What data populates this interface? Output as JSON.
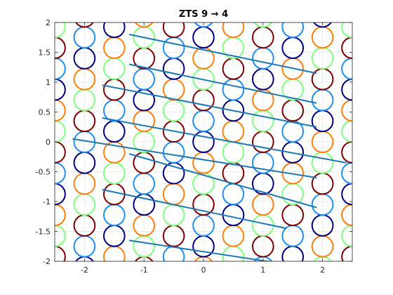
{
  "chart_data": {
    "type": "scatter",
    "title": "ZTS 9 → 4",
    "xlabel": "",
    "ylabel": "",
    "xlim": [
      -2.5,
      2.5
    ],
    "ylim": [
      -2,
      2
    ],
    "xticks": [
      -2,
      -1,
      0,
      1,
      2
    ],
    "yticks": [
      -2,
      -1.5,
      -1,
      -0.5,
      0,
      0.5,
      1,
      1.5,
      2
    ],
    "xtick_labels": [
      "-2",
      "-1",
      "0",
      "1",
      "2"
    ],
    "ytick_labels": [
      "-2",
      "-1.5",
      "-1",
      "-0.5",
      "0",
      "0.5",
      "1",
      "1.5",
      "2"
    ],
    "grid": true,
    "lattice": {
      "row_spacing": 0.35,
      "diagonal_slope": -0.35,
      "column_step": 0.5,
      "circle_radius_data_x": 0.175
    },
    "circle_series": [
      {
        "color": "#000080"
      },
      {
        "color": "#7f0000"
      },
      {
        "color": "#ff7f0e"
      },
      {
        "color": "#1f8ff0"
      },
      {
        "color": "#80ff80"
      }
    ],
    "line_color": "#1f77b4",
    "lines": [
      {
        "x": [
          -1.25,
          1.9
        ],
        "y": [
          1.8,
          1.15
        ]
      },
      {
        "x": [
          -1.25,
          1.9
        ],
        "y": [
          1.3,
          0.65
        ]
      },
      {
        "x": [
          -1.7,
          1.9
        ],
        "y": [
          0.95,
          0.25
        ]
      },
      {
        "x": [
          -1.7,
          2.4
        ],
        "y": [
          0.4,
          -0.35
        ]
      },
      {
        "x": [
          -2.2,
          1.9
        ],
        "y": [
          0.05,
          -0.6
        ]
      },
      {
        "x": [
          -1.25,
          1.9
        ],
        "y": [
          -0.2,
          -1.1
        ]
      },
      {
        "x": [
          -1.7,
          1.4
        ],
        "y": [
          -0.8,
          -1.45
        ]
      },
      {
        "x": [
          -1.25,
          1.4
        ],
        "y": [
          -1.65,
          -2.05
        ]
      }
    ]
  }
}
